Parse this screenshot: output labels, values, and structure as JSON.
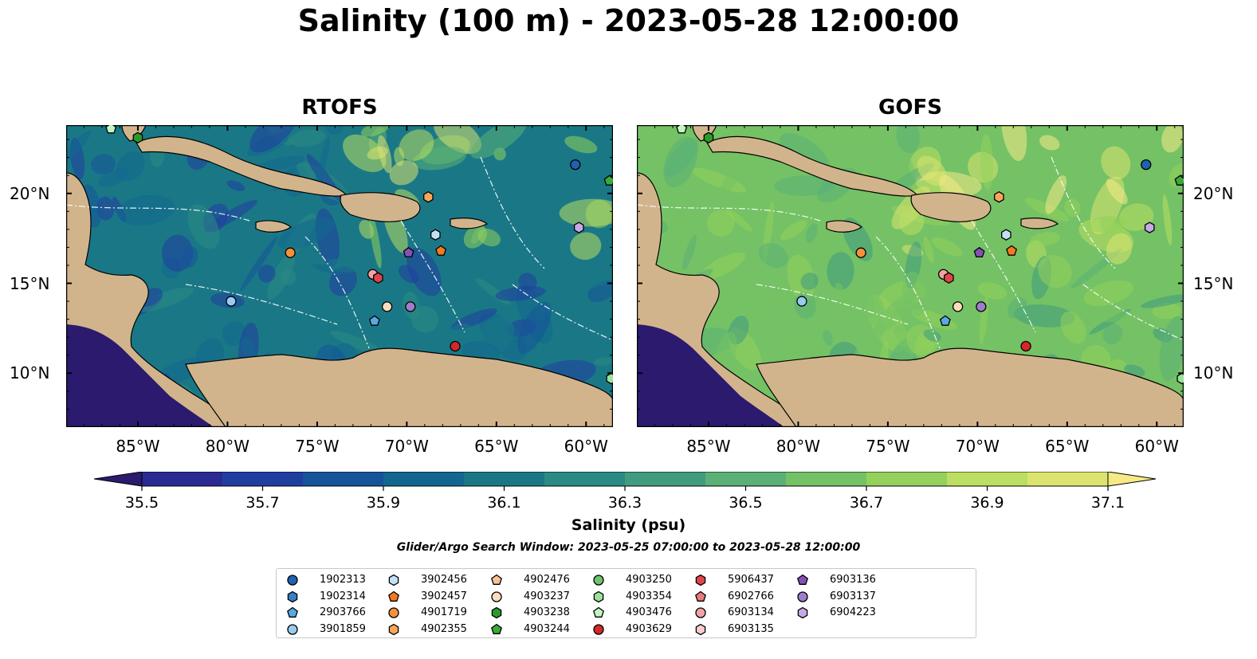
{
  "title": "Salinity (100 m) - 2023-05-28 12:00:00",
  "panels": [
    {
      "title": "RTOFS",
      "model": "rtofs"
    },
    {
      "title": "GOFS",
      "model": "gofs"
    }
  ],
  "lon_ticks": [
    "85°W",
    "80°W",
    "75°W",
    "70°W",
    "65°W",
    "60°W"
  ],
  "lat_ticks": [
    "20°N",
    "15°N",
    "10°N"
  ],
  "colorbar": {
    "label": "Salinity (psu)",
    "ticks": [
      "35.5",
      "35.7",
      "35.9",
      "36.1",
      "36.3",
      "36.5",
      "36.7",
      "36.9",
      "37.1"
    ],
    "colors": [
      "#2b1a6e",
      "#2a2a92",
      "#203ea0",
      "#15549a",
      "#126790",
      "#1a7886",
      "#2b8a84",
      "#409b7f",
      "#5ab076",
      "#74c265",
      "#94d15b",
      "#bcde62",
      "#dce46f",
      "#f5ea86"
    ]
  },
  "search_window": "Glider/Argo Search Window: 2023-05-25 07:00:00 to 2023-05-28 12:00:00",
  "legend": [
    {
      "id": "1902313",
      "shape": "circle",
      "color": "#1f63b0"
    },
    {
      "id": "1902314",
      "shape": "hexagon",
      "color": "#3a7fc4"
    },
    {
      "id": "2903766",
      "shape": "pentagon",
      "color": "#5aa8e0"
    },
    {
      "id": "3901859",
      "shape": "circle",
      "color": "#99cbef"
    },
    {
      "id": "3902456",
      "shape": "hexagon",
      "color": "#c3e1f6"
    },
    {
      "id": "3902457",
      "shape": "pentagon",
      "color": "#f4791f"
    },
    {
      "id": "4901719",
      "shape": "circle",
      "color": "#f6913a"
    },
    {
      "id": "4902355",
      "shape": "hexagon",
      "color": "#f8a75a"
    },
    {
      "id": "4902476",
      "shape": "pentagon",
      "color": "#f9c493"
    },
    {
      "id": "4903237",
      "shape": "circle",
      "color": "#fcdcbc"
    },
    {
      "id": "4903238",
      "shape": "hexagon",
      "color": "#2a9a2a"
    },
    {
      "id": "4903244",
      "shape": "pentagon",
      "color": "#3aaa3a"
    },
    {
      "id": "4903250",
      "shape": "circle",
      "color": "#6cc46c"
    },
    {
      "id": "4903354",
      "shape": "hexagon",
      "color": "#9ae29a"
    },
    {
      "id": "4903476",
      "shape": "pentagon",
      "color": "#c3f5c3"
    },
    {
      "id": "4903629",
      "shape": "circle",
      "color": "#d62728"
    },
    {
      "id": "5906437",
      "shape": "hexagon",
      "color": "#e0454a"
    },
    {
      "id": "6902766",
      "shape": "pentagon",
      "color": "#ea7a7c"
    },
    {
      "id": "6903134",
      "shape": "circle",
      "color": "#f4a3a4"
    },
    {
      "id": "6903135",
      "shape": "hexagon",
      "color": "#fbcccc"
    },
    {
      "id": "6903136",
      "shape": "pentagon",
      "color": "#8650b4"
    },
    {
      "id": "6903137",
      "shape": "circle",
      "color": "#a07ccc"
    },
    {
      "id": "6904223",
      "shape": "hexagon",
      "color": "#c7a9e6"
    }
  ],
  "map_extent": {
    "lon_min": -89,
    "lon_max": -58.5,
    "lat_min": 7,
    "lat_max": 23.8
  },
  "floats": [
    {
      "id": "1902313",
      "lon": -60.6,
      "lat": 21.6
    },
    {
      "id": "4903244",
      "lon": -58.7,
      "lat": 20.7
    },
    {
      "id": "4903238",
      "lon": -85.0,
      "lat": 23.1
    },
    {
      "id": "4903476",
      "lon": -86.5,
      "lat": 23.6
    },
    {
      "id": "4902355",
      "lon": -68.8,
      "lat": 19.8
    },
    {
      "id": "6904223",
      "lon": -60.4,
      "lat": 18.1
    },
    {
      "id": "3902456",
      "lon": -68.4,
      "lat": 17.7
    },
    {
      "id": "4901719",
      "lon": -76.5,
      "lat": 16.7
    },
    {
      "id": "6903136",
      "lon": -69.9,
      "lat": 16.7
    },
    {
      "id": "3902457",
      "lon": -68.1,
      "lat": 16.8
    },
    {
      "id": "6903134",
      "lon": -71.9,
      "lat": 15.5
    },
    {
      "id": "5906437",
      "lon": -71.6,
      "lat": 15.3
    },
    {
      "id": "3901859",
      "lon": -79.8,
      "lat": 14.0
    },
    {
      "id": "4903237",
      "lon": -71.1,
      "lat": 13.7
    },
    {
      "id": "6903137",
      "lon": -69.8,
      "lat": 13.7
    },
    {
      "id": "2903766",
      "lon": -71.8,
      "lat": 12.9
    },
    {
      "id": "4903629",
      "lon": -67.3,
      "lat": 11.5
    },
    {
      "id": "4903354",
      "lon": -58.6,
      "lat": 9.7
    }
  ]
}
